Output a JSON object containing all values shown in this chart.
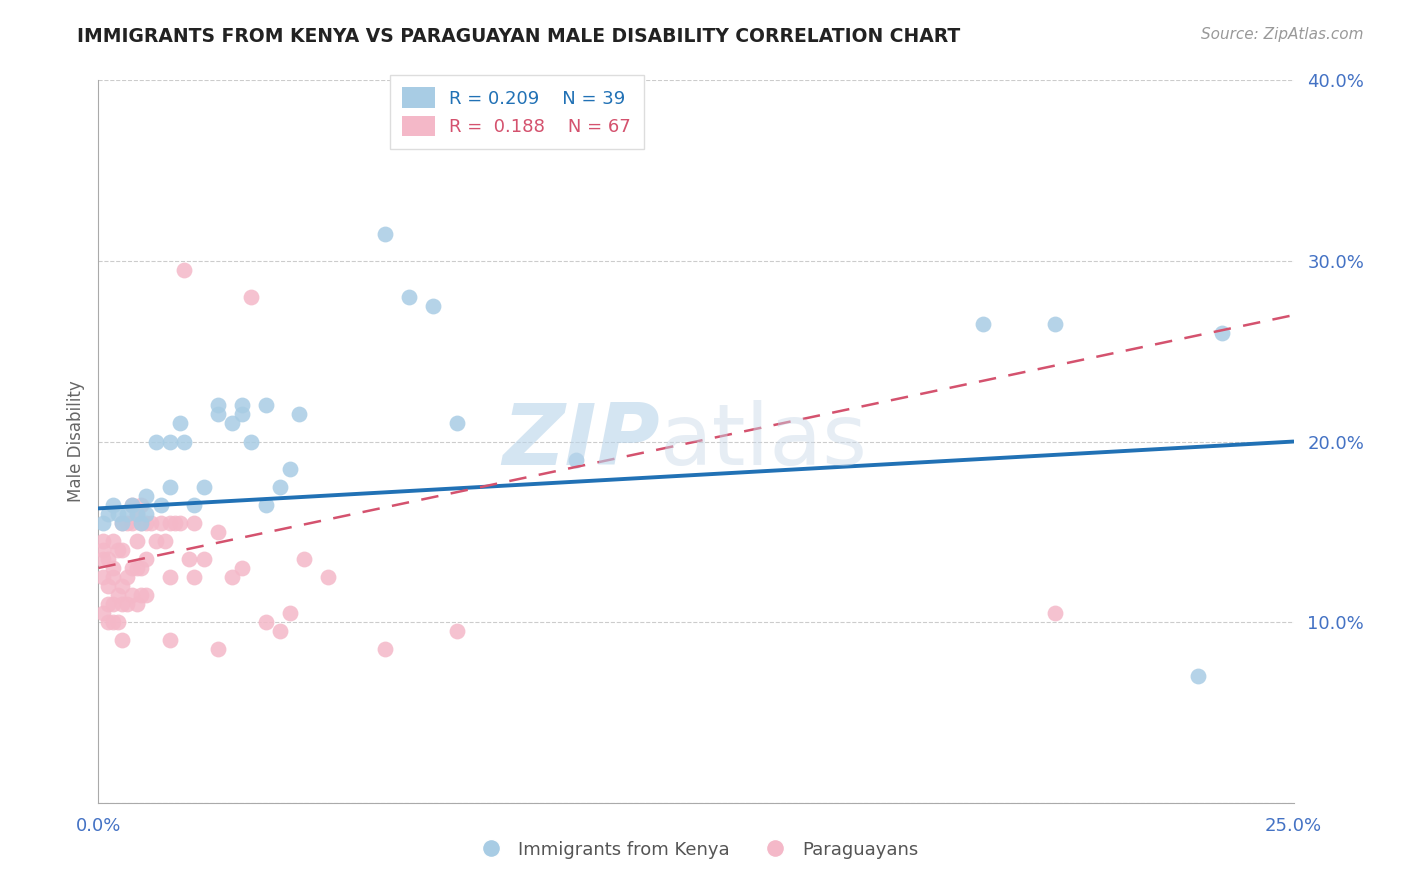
{
  "title": "IMMIGRANTS FROM KENYA VS PARAGUAYAN MALE DISABILITY CORRELATION CHART",
  "source": "Source: ZipAtlas.com",
  "ylabel": "Male Disability",
  "xlim": [
    0,
    0.25
  ],
  "ylim": [
    0,
    0.4
  ],
  "xticks": [
    0.0,
    0.25
  ],
  "xtick_labels": [
    "0.0%",
    "25.0%"
  ],
  "yticks": [
    0.0,
    0.1,
    0.2,
    0.3,
    0.4
  ],
  "ytick_labels": [
    "",
    "10.0%",
    "20.0%",
    "30.0%",
    "40.0%"
  ],
  "blue_label": "Immigrants from Kenya",
  "pink_label": "Paraguayans",
  "blue_R": "R = 0.209",
  "blue_N": "N = 39",
  "pink_R": "R =  0.188",
  "pink_N": "N = 67",
  "blue_color": "#a8cce4",
  "pink_color": "#f4b8c8",
  "blue_line_color": "#2171b5",
  "pink_line_color": "#d4526e",
  "title_color": "#222222",
  "axis_label_color": "#666666",
  "tick_color": "#4472c4",
  "grid_color": "#cccccc",
  "watermark_zip": "ZIP",
  "watermark_atlas": "atlas",
  "blue_x": [
    0.001,
    0.002,
    0.003,
    0.004,
    0.005,
    0.006,
    0.007,
    0.008,
    0.009,
    0.01,
    0.01,
    0.012,
    0.013,
    0.015,
    0.015,
    0.017,
    0.018,
    0.02,
    0.022,
    0.025,
    0.025,
    0.028,
    0.03,
    0.03,
    0.032,
    0.035,
    0.035,
    0.038,
    0.04,
    0.042,
    0.06,
    0.065,
    0.07,
    0.075,
    0.1,
    0.185,
    0.2,
    0.23,
    0.235
  ],
  "blue_y": [
    0.155,
    0.16,
    0.165,
    0.16,
    0.155,
    0.16,
    0.165,
    0.16,
    0.155,
    0.16,
    0.17,
    0.2,
    0.165,
    0.175,
    0.2,
    0.21,
    0.2,
    0.165,
    0.175,
    0.215,
    0.22,
    0.21,
    0.215,
    0.22,
    0.2,
    0.22,
    0.165,
    0.175,
    0.185,
    0.215,
    0.315,
    0.28,
    0.275,
    0.21,
    0.19,
    0.265,
    0.265,
    0.07,
    0.26
  ],
  "pink_x": [
    0.001,
    0.001,
    0.001,
    0.001,
    0.001,
    0.002,
    0.002,
    0.002,
    0.002,
    0.003,
    0.003,
    0.003,
    0.003,
    0.003,
    0.004,
    0.004,
    0.004,
    0.005,
    0.005,
    0.005,
    0.005,
    0.005,
    0.006,
    0.006,
    0.006,
    0.007,
    0.007,
    0.007,
    0.007,
    0.008,
    0.008,
    0.008,
    0.008,
    0.009,
    0.009,
    0.009,
    0.009,
    0.01,
    0.01,
    0.01,
    0.011,
    0.012,
    0.013,
    0.014,
    0.015,
    0.015,
    0.015,
    0.016,
    0.017,
    0.018,
    0.019,
    0.02,
    0.02,
    0.022,
    0.025,
    0.025,
    0.028,
    0.03,
    0.032,
    0.035,
    0.038,
    0.04,
    0.043,
    0.048,
    0.06,
    0.075,
    0.2
  ],
  "pink_y": [
    0.125,
    0.135,
    0.14,
    0.145,
    0.105,
    0.1,
    0.11,
    0.12,
    0.135,
    0.1,
    0.11,
    0.125,
    0.13,
    0.145,
    0.1,
    0.115,
    0.14,
    0.09,
    0.11,
    0.12,
    0.14,
    0.155,
    0.11,
    0.125,
    0.155,
    0.115,
    0.13,
    0.155,
    0.165,
    0.11,
    0.13,
    0.145,
    0.16,
    0.115,
    0.13,
    0.155,
    0.165,
    0.115,
    0.135,
    0.155,
    0.155,
    0.145,
    0.155,
    0.145,
    0.09,
    0.125,
    0.155,
    0.155,
    0.155,
    0.295,
    0.135,
    0.125,
    0.155,
    0.135,
    0.085,
    0.15,
    0.125,
    0.13,
    0.28,
    0.1,
    0.095,
    0.105,
    0.135,
    0.125,
    0.085,
    0.095,
    0.105
  ],
  "blue_trend_x0": 0.0,
  "blue_trend_y0": 0.163,
  "blue_trend_x1": 0.25,
  "blue_trend_y1": 0.2,
  "pink_trend_x0": 0.0,
  "pink_trend_y0": 0.13,
  "pink_trend_x1": 0.25,
  "pink_trend_y1": 0.27
}
